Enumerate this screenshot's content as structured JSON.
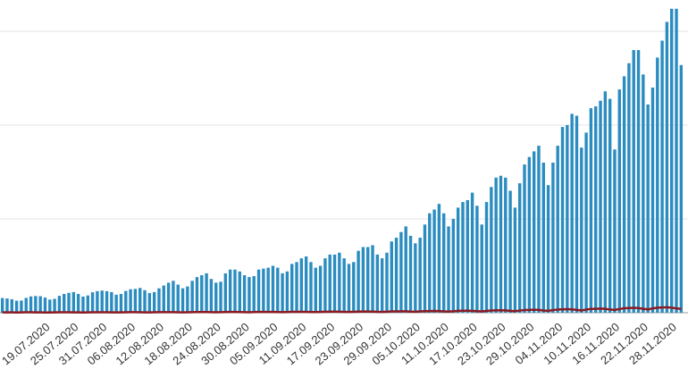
{
  "chart_data": {
    "type": "bar",
    "categories": [
      null,
      null,
      null,
      null,
      null,
      null,
      null,
      null,
      null,
      "19.07.2020",
      null,
      null,
      null,
      null,
      null,
      "25.07.2020",
      null,
      null,
      null,
      null,
      null,
      "31.07.2020",
      null,
      null,
      null,
      null,
      null,
      "06.08.2020",
      null,
      null,
      null,
      null,
      null,
      "12.08.2020",
      null,
      null,
      null,
      null,
      null,
      "18.08.2020",
      null,
      null,
      null,
      null,
      null,
      "24.08.2020",
      null,
      null,
      null,
      null,
      null,
      "30.08.2020",
      null,
      null,
      null,
      null,
      null,
      "05.09.2020",
      null,
      null,
      null,
      null,
      null,
      "11.09.2020",
      null,
      null,
      null,
      null,
      null,
      "17.09.2020",
      null,
      null,
      null,
      null,
      null,
      "23.09.2020",
      null,
      null,
      null,
      null,
      null,
      "29.09.2020",
      null,
      null,
      null,
      null,
      null,
      "05.10.2020",
      null,
      null,
      null,
      null,
      null,
      "11.10.2020",
      null,
      null,
      null,
      null,
      null,
      "17.10.2020",
      null,
      null,
      null,
      null,
      null,
      "23.10.2020",
      null,
      null,
      null,
      null,
      null,
      "29.10.2020",
      null,
      null,
      null,
      null,
      null,
      "04.11.2020",
      null,
      null,
      null,
      null,
      null,
      "10.11.2020",
      null,
      null,
      null,
      null,
      null,
      "16.11.2020",
      null,
      null,
      null,
      null,
      null,
      "22.11.2020",
      null,
      null,
      null,
      null,
      null,
      "28.11.2020",
      null,
      null
    ],
    "series": [
      {
        "type": "bar",
        "color": "#2b8cc0",
        "values": [
          780,
          760,
          720,
          640,
          650,
          790,
          870,
          890,
          880,
          810,
          700,
          740,
          900,
          1000,
          1060,
          1100,
          1000,
          860,
          920,
          1090,
          1150,
          1180,
          1150,
          1100,
          960,
          1000,
          1160,
          1250,
          1270,
          1320,
          1200,
          1050,
          1100,
          1300,
          1450,
          1600,
          1700,
          1500,
          1300,
          1400,
          1700,
          1900,
          2000,
          2100,
          1800,
          1600,
          1650,
          2100,
          2300,
          2300,
          2200,
          2000,
          1900,
          1950,
          2300,
          2350,
          2400,
          2500,
          2400,
          2100,
          2200,
          2600,
          2700,
          2900,
          3000,
          2700,
          2400,
          2500,
          2900,
          3100,
          3100,
          3200,
          2900,
          2600,
          2700,
          3300,
          3500,
          3500,
          3600,
          3100,
          2900,
          3200,
          3800,
          4000,
          4300,
          4600,
          4100,
          3700,
          4000,
          4700,
          5300,
          5500,
          5800,
          5300,
          4600,
          5000,
          5600,
          5900,
          6000,
          6400,
          5700,
          4700,
          5900,
          6700,
          7200,
          7300,
          7200,
          6500,
          5600,
          6900,
          7900,
          8300,
          8600,
          8900,
          8000,
          6800,
          8000,
          8900,
          9900,
          10000,
          10600,
          10500,
          8800,
          9600,
          10900,
          11000,
          11300,
          11800,
          11400,
          8700,
          11900,
          12600,
          13300,
          14000,
          14000,
          12700,
          11100,
          12000,
          13600,
          14500,
          15500,
          16200,
          16200,
          13200
        ]
      },
      {
        "type": "line",
        "color": "#8b1a22",
        "values": [
          20,
          18,
          16,
          14,
          17,
          21,
          22,
          20,
          19,
          15,
          13,
          16,
          22,
          24,
          22,
          20,
          17,
          15,
          18,
          23,
          25,
          24,
          22,
          18,
          16,
          19,
          25,
          27,
          28,
          26,
          20,
          18,
          22,
          28,
          30,
          30,
          28,
          24,
          20,
          26,
          32,
          34,
          36,
          34,
          28,
          24,
          30,
          38,
          40,
          40,
          38,
          30,
          26,
          34,
          42,
          44,
          44,
          42,
          34,
          30,
          38,
          46,
          48,
          50,
          48,
          38,
          34,
          42,
          52,
          56,
          58,
          56,
          44,
          40,
          50,
          60,
          64,
          66,
          62,
          50,
          44,
          56,
          70,
          74,
          80,
          76,
          60,
          52,
          70,
          86,
          90,
          96,
          90,
          72,
          64,
          80,
          100,
          106,
          110,
          104,
          84,
          72,
          98,
          120,
          126,
          130,
          124,
          100,
          86,
          116,
          140,
          150,
          160,
          150,
          120,
          100,
          140,
          170,
          180,
          190,
          180,
          150,
          120,
          170,
          200,
          210,
          220,
          210,
          170,
          150,
          200,
          240,
          250,
          260,
          250,
          210,
          180,
          230,
          270,
          280,
          290,
          270,
          230,
          200
        ]
      }
    ],
    "ylim": [
      0,
      16667
    ],
    "yticks": [
      0,
      5000,
      10000,
      15000
    ],
    "grid": true
  }
}
